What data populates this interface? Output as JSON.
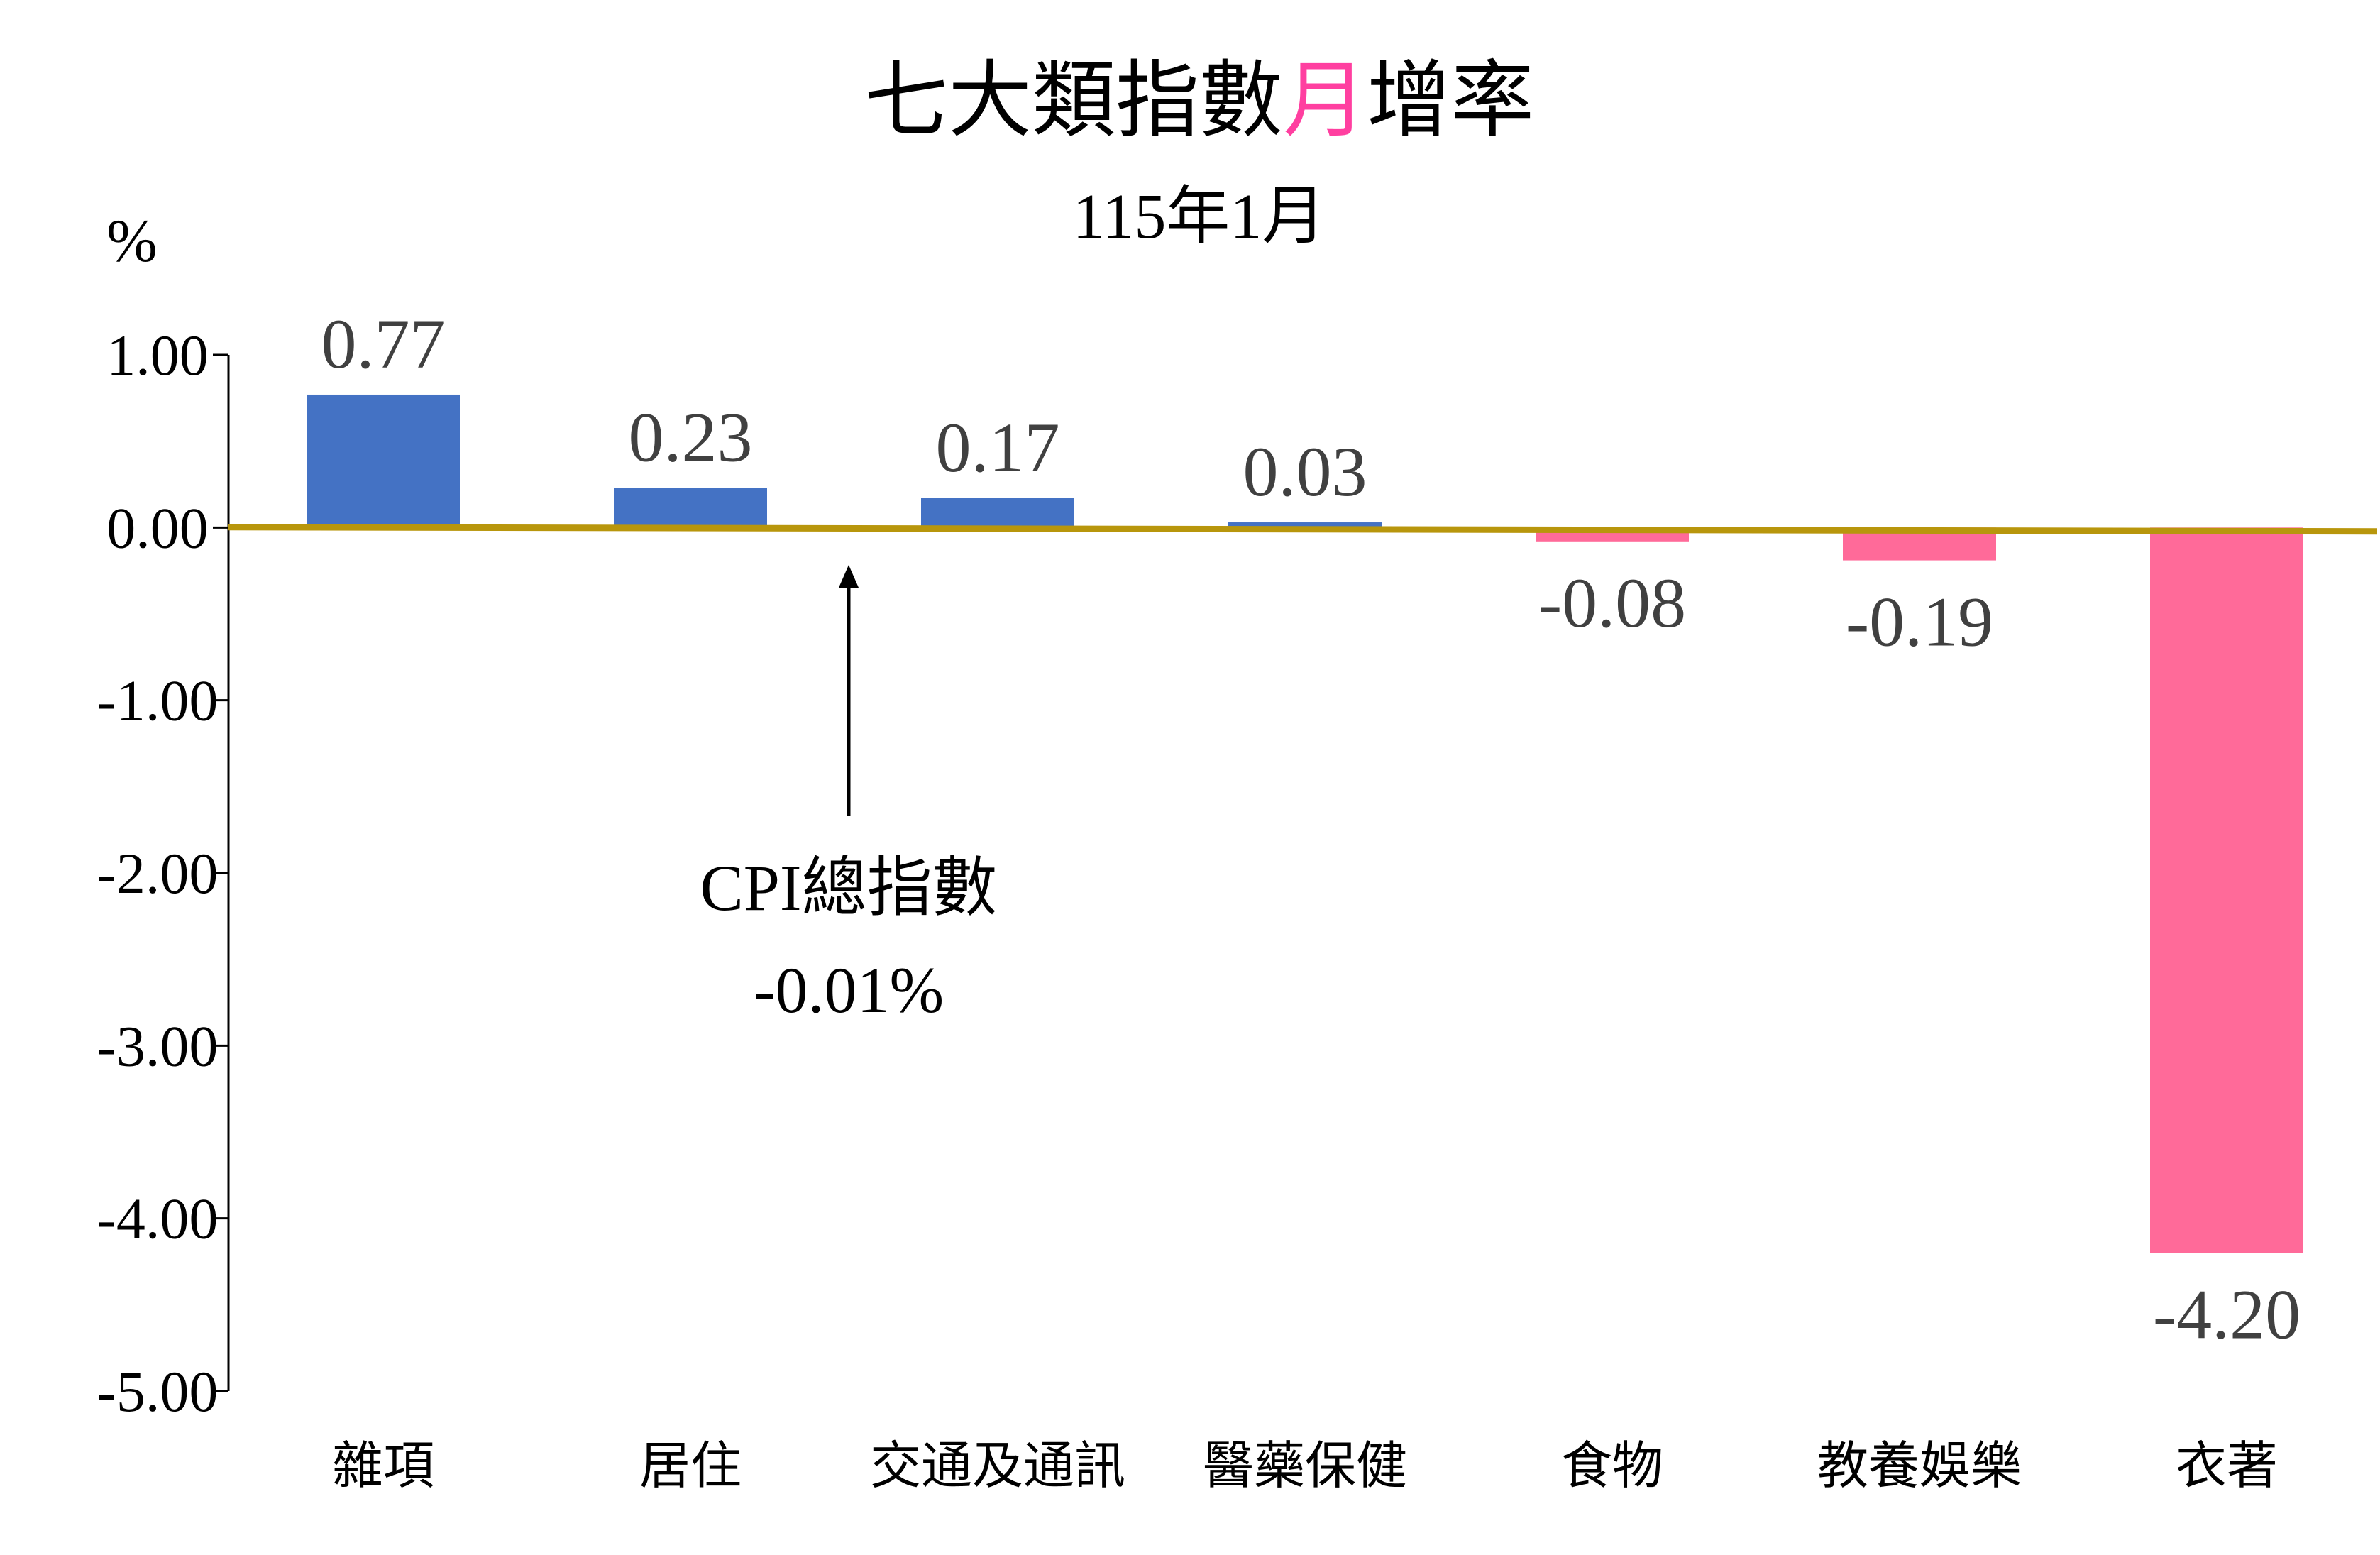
{
  "chart_data": {
    "type": "bar",
    "title_parts": [
      "七大類指數",
      "月",
      "增率"
    ],
    "subtitle": "115年1月",
    "unit": "%",
    "categories": [
      "雜項",
      "居住",
      "交通及通訊",
      "醫藥保健",
      "食物",
      "教養娛樂",
      "衣著"
    ],
    "values": [
      0.77,
      0.23,
      0.17,
      0.03,
      -0.08,
      -0.19,
      -4.2
    ],
    "value_labels": [
      "0.77",
      "0.23",
      "0.17",
      "0.03",
      "-0.08",
      "-0.19",
      "-4.20"
    ],
    "ylim": [
      -5,
      1
    ],
    "yticks": [
      1,
      0,
      -1,
      -2,
      -3,
      -4,
      -5
    ],
    "ytick_labels": [
      "1.00",
      "0.00",
      "-1.00",
      "-2.00",
      "-3.00",
      "-4.00",
      "-5.00"
    ],
    "reference_line": {
      "value": -0.01
    },
    "annotation": {
      "line1": "CPI總指數",
      "line2": "-0.01%"
    },
    "colors": {
      "positive": "#4472C4",
      "negative": "#FF6A99",
      "title_highlight": "#FF3FA0",
      "reference_line": "#B8960C",
      "text": "#000000",
      "value_label": "#404040"
    }
  }
}
